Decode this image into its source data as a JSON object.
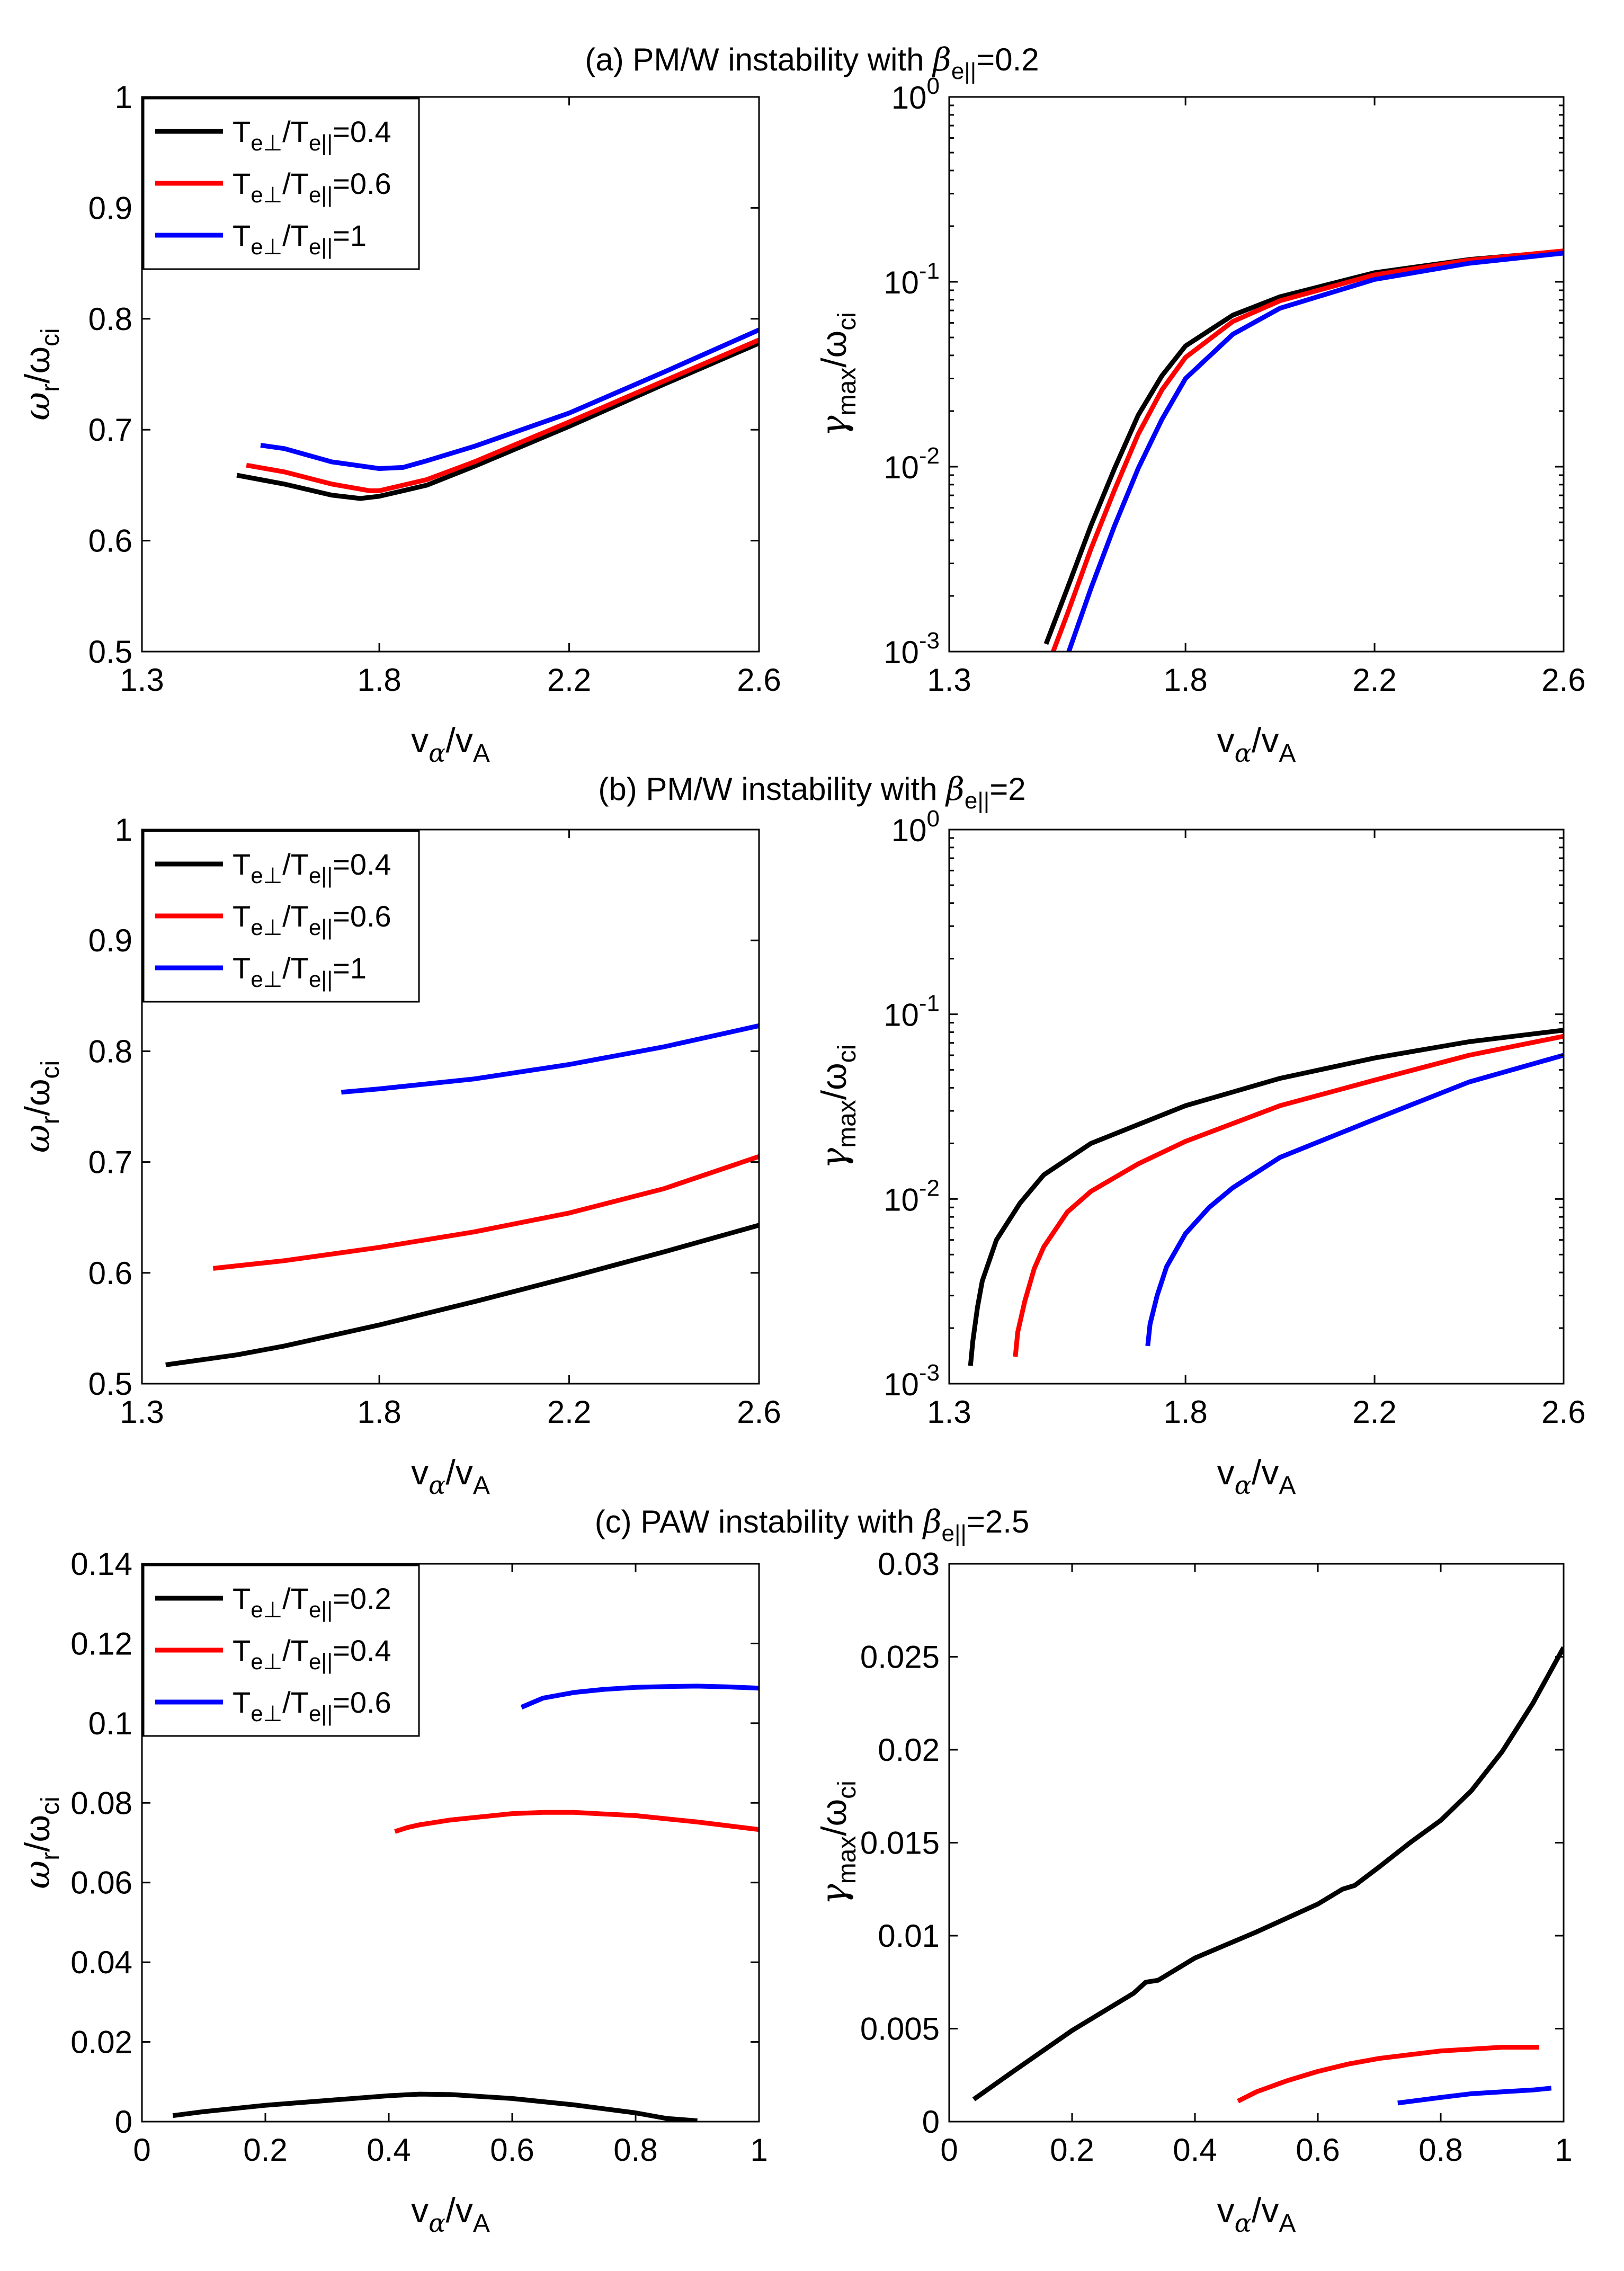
{
  "figure": {
    "panels": [
      {
        "id": "a",
        "title_prefix": "(a) PM/W instability with ",
        "beta_symbol": "β",
        "beta_sub": "e||",
        "beta_value": "=0.2"
      },
      {
        "id": "b",
        "title_prefix": "(b) PM/W instability with ",
        "beta_symbol": "β",
        "beta_sub": "e||",
        "beta_value": "=2"
      },
      {
        "id": "c",
        "title_prefix": "(c) PAW instability with ",
        "beta_symbol": "β",
        "beta_sub": "e||",
        "beta_value": "=2.5"
      }
    ],
    "labels": {
      "x": {
        "main": "v",
        "sub1": "α",
        "mid": "/v",
        "sub2": "A"
      },
      "y_left": {
        "main": "ω",
        "sub1": "r",
        "mid": "/ω",
        "sub2": "ci"
      },
      "y_right": {
        "main": "γ",
        "sub1": "max",
        "mid": "/ω",
        "sub2": "ci"
      }
    },
    "legend_prefix": {
      "t": "T",
      "perp": "e⊥",
      "slash": "/T",
      "par": "e||"
    }
  },
  "chart_data": [
    {
      "panel": "a-left",
      "type": "line",
      "xscale": "linear",
      "yscale": "linear",
      "xlim": [
        1.3,
        2.6
      ],
      "ylim": [
        0.5,
        1.0
      ],
      "xticks": [
        "1.3",
        "1.8",
        "2.2",
        "2.6"
      ],
      "xtick_values": [
        1.3,
        1.8,
        2.2,
        2.6
      ],
      "yticks": [
        "0.5",
        "0.6",
        "0.7",
        "0.8",
        "0.9",
        "1"
      ],
      "ytick_values": [
        0.5,
        0.6,
        0.7,
        0.8,
        0.9,
        1.0
      ],
      "legend": "top-left",
      "series": [
        {
          "name": "=0.4",
          "color": "#000000",
          "x": [
            1.5,
            1.6,
            1.7,
            1.76,
            1.8,
            1.9,
            2.0,
            2.2,
            2.4,
            2.6
          ],
          "y": [
            0.659,
            0.651,
            0.641,
            0.638,
            0.64,
            0.65,
            0.667,
            0.703,
            0.741,
            0.778
          ]
        },
        {
          "name": "=0.6",
          "color": "#ff0000",
          "x": [
            1.52,
            1.6,
            1.7,
            1.78,
            1.8,
            1.9,
            2.0,
            2.2,
            2.4,
            2.6
          ],
          "y": [
            0.668,
            0.662,
            0.651,
            0.645,
            0.645,
            0.655,
            0.671,
            0.707,
            0.744,
            0.781
          ]
        },
        {
          "name": "=1",
          "color": "#0000ff",
          "x": [
            1.55,
            1.6,
            1.7,
            1.8,
            1.85,
            1.9,
            2.0,
            2.2,
            2.4,
            2.6
          ],
          "y": [
            0.686,
            0.683,
            0.671,
            0.665,
            0.666,
            0.672,
            0.685,
            0.715,
            0.752,
            0.79
          ]
        }
      ]
    },
    {
      "panel": "a-right",
      "type": "line",
      "xscale": "linear",
      "yscale": "log",
      "xlim": [
        1.3,
        2.6
      ],
      "ylim": [
        0.001,
        1
      ],
      "xticks": [
        "1.3",
        "1.8",
        "2.2",
        "2.6"
      ],
      "xtick_values": [
        1.3,
        1.8,
        2.2,
        2.6
      ],
      "yticks": [
        "-3",
        "-2",
        "-1",
        "0"
      ],
      "ytick_values": [
        0.001,
        0.01,
        0.1,
        1
      ],
      "series": [
        {
          "name": "=0.4",
          "color": "#000000",
          "x": [
            1.505,
            1.55,
            1.6,
            1.65,
            1.7,
            1.75,
            1.8,
            1.9,
            2.0,
            2.2,
            2.4,
            2.6
          ],
          "y": [
            0.0011,
            0.0022,
            0.0048,
            0.0098,
            0.019,
            0.031,
            0.045,
            0.066,
            0.083,
            0.112,
            0.132,
            0.146
          ]
        },
        {
          "name": "=0.6",
          "color": "#ff0000",
          "x": [
            1.52,
            1.55,
            1.6,
            1.65,
            1.7,
            1.75,
            1.8,
            1.9,
            2.0,
            2.2,
            2.4,
            2.6
          ],
          "y": [
            0.001,
            0.0016,
            0.0036,
            0.0075,
            0.015,
            0.026,
            0.039,
            0.061,
            0.079,
            0.109,
            0.131,
            0.147
          ]
        },
        {
          "name": "=1",
          "color": "#0000ff",
          "x": [
            1.55,
            1.6,
            1.65,
            1.7,
            1.75,
            1.8,
            1.9,
            2.0,
            2.2,
            2.4,
            2.6
          ],
          "y": [
            0.00095,
            0.0022,
            0.0048,
            0.0098,
            0.018,
            0.03,
            0.052,
            0.072,
            0.103,
            0.126,
            0.143
          ]
        }
      ]
    },
    {
      "panel": "b-left",
      "type": "line",
      "xscale": "linear",
      "yscale": "linear",
      "xlim": [
        1.3,
        2.6
      ],
      "ylim": [
        0.5,
        1.0
      ],
      "xticks": [
        "1.3",
        "1.8",
        "2.2",
        "2.6"
      ],
      "xtick_values": [
        1.3,
        1.8,
        2.2,
        2.6
      ],
      "yticks": [
        "0.5",
        "0.6",
        "0.7",
        "0.8",
        "0.9",
        "1"
      ],
      "ytick_values": [
        0.5,
        0.6,
        0.7,
        0.8,
        0.9,
        1.0
      ],
      "legend": "top-left",
      "series": [
        {
          "name": "=0.4",
          "color": "#000000",
          "x": [
            1.35,
            1.5,
            1.6,
            1.8,
            2.0,
            2.2,
            2.4,
            2.6
          ],
          "y": [
            0.517,
            0.526,
            0.534,
            0.553,
            0.574,
            0.596,
            0.619,
            0.643
          ]
        },
        {
          "name": "=0.6",
          "color": "#ff0000",
          "x": [
            1.45,
            1.6,
            1.8,
            2.0,
            2.2,
            2.4,
            2.6
          ],
          "y": [
            0.604,
            0.611,
            0.623,
            0.637,
            0.654,
            0.676,
            0.705
          ]
        },
        {
          "name": "=1",
          "color": "#0000ff",
          "x": [
            1.72,
            1.8,
            2.0,
            2.2,
            2.4,
            2.6
          ],
          "y": [
            0.763,
            0.766,
            0.775,
            0.788,
            0.804,
            0.823
          ]
        }
      ]
    },
    {
      "panel": "b-right",
      "type": "line",
      "xscale": "linear",
      "yscale": "log",
      "xlim": [
        1.3,
        2.6
      ],
      "ylim": [
        0.001,
        1
      ],
      "xticks": [
        "1.3",
        "1.8",
        "2.2",
        "2.6"
      ],
      "xtick_values": [
        1.3,
        1.8,
        2.2,
        2.6
      ],
      "yticks": [
        "-3",
        "-2",
        "-1",
        "0"
      ],
      "ytick_values": [
        0.001,
        0.01,
        0.1,
        1
      ],
      "series": [
        {
          "name": "=0.4",
          "color": "#000000",
          "x": [
            1.345,
            1.35,
            1.36,
            1.37,
            1.4,
            1.45,
            1.5,
            1.6,
            1.8,
            2.0,
            2.2,
            2.4,
            2.6
          ],
          "y": [
            0.00125,
            0.0017,
            0.0026,
            0.0036,
            0.006,
            0.0095,
            0.0135,
            0.02,
            0.032,
            0.045,
            0.058,
            0.071,
            0.082
          ]
        },
        {
          "name": "=0.6",
          "color": "#ff0000",
          "x": [
            1.44,
            1.445,
            1.46,
            1.48,
            1.5,
            1.55,
            1.6,
            1.7,
            1.8,
            2.0,
            2.2,
            2.4,
            2.6
          ],
          "y": [
            0.0014,
            0.0019,
            0.0028,
            0.0042,
            0.0055,
            0.0085,
            0.011,
            0.0155,
            0.0205,
            0.032,
            0.044,
            0.06,
            0.076
          ]
        },
        {
          "name": "=1",
          "color": "#0000ff",
          "x": [
            1.72,
            1.725,
            1.74,
            1.76,
            1.8,
            1.85,
            1.9,
            2.0,
            2.2,
            2.4,
            2.6
          ],
          "y": [
            0.0016,
            0.0021,
            0.003,
            0.0043,
            0.0065,
            0.009,
            0.0115,
            0.0168,
            0.027,
            0.043,
            0.06
          ]
        }
      ]
    },
    {
      "panel": "c-left",
      "type": "line",
      "xscale": "linear",
      "yscale": "linear",
      "xlim": [
        0,
        1
      ],
      "ylim": [
        0,
        0.14
      ],
      "xticks": [
        "0",
        "0.2",
        "0.4",
        "0.6",
        "0.8",
        "1"
      ],
      "xtick_values": [
        0,
        0.2,
        0.4,
        0.6,
        0.8,
        1
      ],
      "yticks": [
        "0",
        "0.02",
        "0.04",
        "0.06",
        "0.08",
        "0.1",
        "0.12",
        "0.14"
      ],
      "ytick_values": [
        0,
        0.02,
        0.04,
        0.06,
        0.08,
        0.1,
        0.12,
        0.14
      ],
      "legend": "top-left",
      "series": [
        {
          "name": "=0.2",
          "color": "#000000",
          "x": [
            0.05,
            0.1,
            0.2,
            0.3,
            0.4,
            0.45,
            0.5,
            0.6,
            0.7,
            0.8,
            0.85,
            0.9
          ],
          "y": [
            0.0015,
            0.0025,
            0.0041,
            0.0053,
            0.0065,
            0.0069,
            0.0068,
            0.0058,
            0.0042,
            0.0022,
            0.0008,
            0.0002
          ]
        },
        {
          "name": "=0.4",
          "color": "#ff0000",
          "x": [
            0.41,
            0.43,
            0.45,
            0.5,
            0.55,
            0.6,
            0.65,
            0.7,
            0.8,
            0.9,
            1.0
          ],
          "y": [
            0.0728,
            0.0738,
            0.0745,
            0.0757,
            0.0765,
            0.0773,
            0.0776,
            0.0776,
            0.0768,
            0.0752,
            0.0733
          ]
        },
        {
          "name": "=0.6",
          "color": "#0000ff",
          "x": [
            0.615,
            0.65,
            0.7,
            0.75,
            0.8,
            0.85,
            0.9,
            0.95,
            1.0
          ],
          "y": [
            0.104,
            0.1063,
            0.1077,
            0.1085,
            0.109,
            0.1092,
            0.1093,
            0.1091,
            0.1088
          ]
        }
      ]
    },
    {
      "panel": "c-right",
      "type": "line",
      "xscale": "linear",
      "yscale": "linear",
      "xlim": [
        0,
        1
      ],
      "ylim": [
        0,
        0.03
      ],
      "xticks": [
        "0",
        "0.2",
        "0.4",
        "0.6",
        "0.8",
        "1"
      ],
      "xtick_values": [
        0,
        0.2,
        0.4,
        0.6,
        0.8,
        1
      ],
      "yticks": [
        "0",
        "0.005",
        "0.01",
        "0.015",
        "0.02",
        "0.025",
        "0.03"
      ],
      "ytick_values": [
        0,
        0.005,
        0.01,
        0.015,
        0.02,
        0.025,
        0.03
      ],
      "series": [
        {
          "name": "=0.2",
          "color": "#000000",
          "x": [
            0.04,
            0.1,
            0.2,
            0.3,
            0.32,
            0.34,
            0.4,
            0.5,
            0.6,
            0.64,
            0.66,
            0.7,
            0.75,
            0.8,
            0.85,
            0.9,
            0.95,
            1.0
          ],
          "y": [
            0.0012,
            0.0026,
            0.0049,
            0.0069,
            0.0075,
            0.0076,
            0.0088,
            0.0102,
            0.0117,
            0.0125,
            0.0127,
            0.0137,
            0.015,
            0.0162,
            0.0178,
            0.0199,
            0.0225,
            0.0255
          ]
        },
        {
          "name": "=0.4",
          "color": "#ff0000",
          "x": [
            0.47,
            0.5,
            0.55,
            0.6,
            0.65,
            0.7,
            0.75,
            0.8,
            0.85,
            0.9,
            0.96
          ],
          "y": [
            0.0011,
            0.0016,
            0.0022,
            0.0027,
            0.0031,
            0.0034,
            0.0036,
            0.0038,
            0.0039,
            0.004,
            0.004
          ]
        },
        {
          "name": "=0.6",
          "color": "#0000ff",
          "x": [
            0.73,
            0.8,
            0.85,
            0.9,
            0.95,
            0.98
          ],
          "y": [
            0.001,
            0.0013,
            0.0015,
            0.0016,
            0.0017,
            0.0018
          ]
        }
      ]
    }
  ]
}
